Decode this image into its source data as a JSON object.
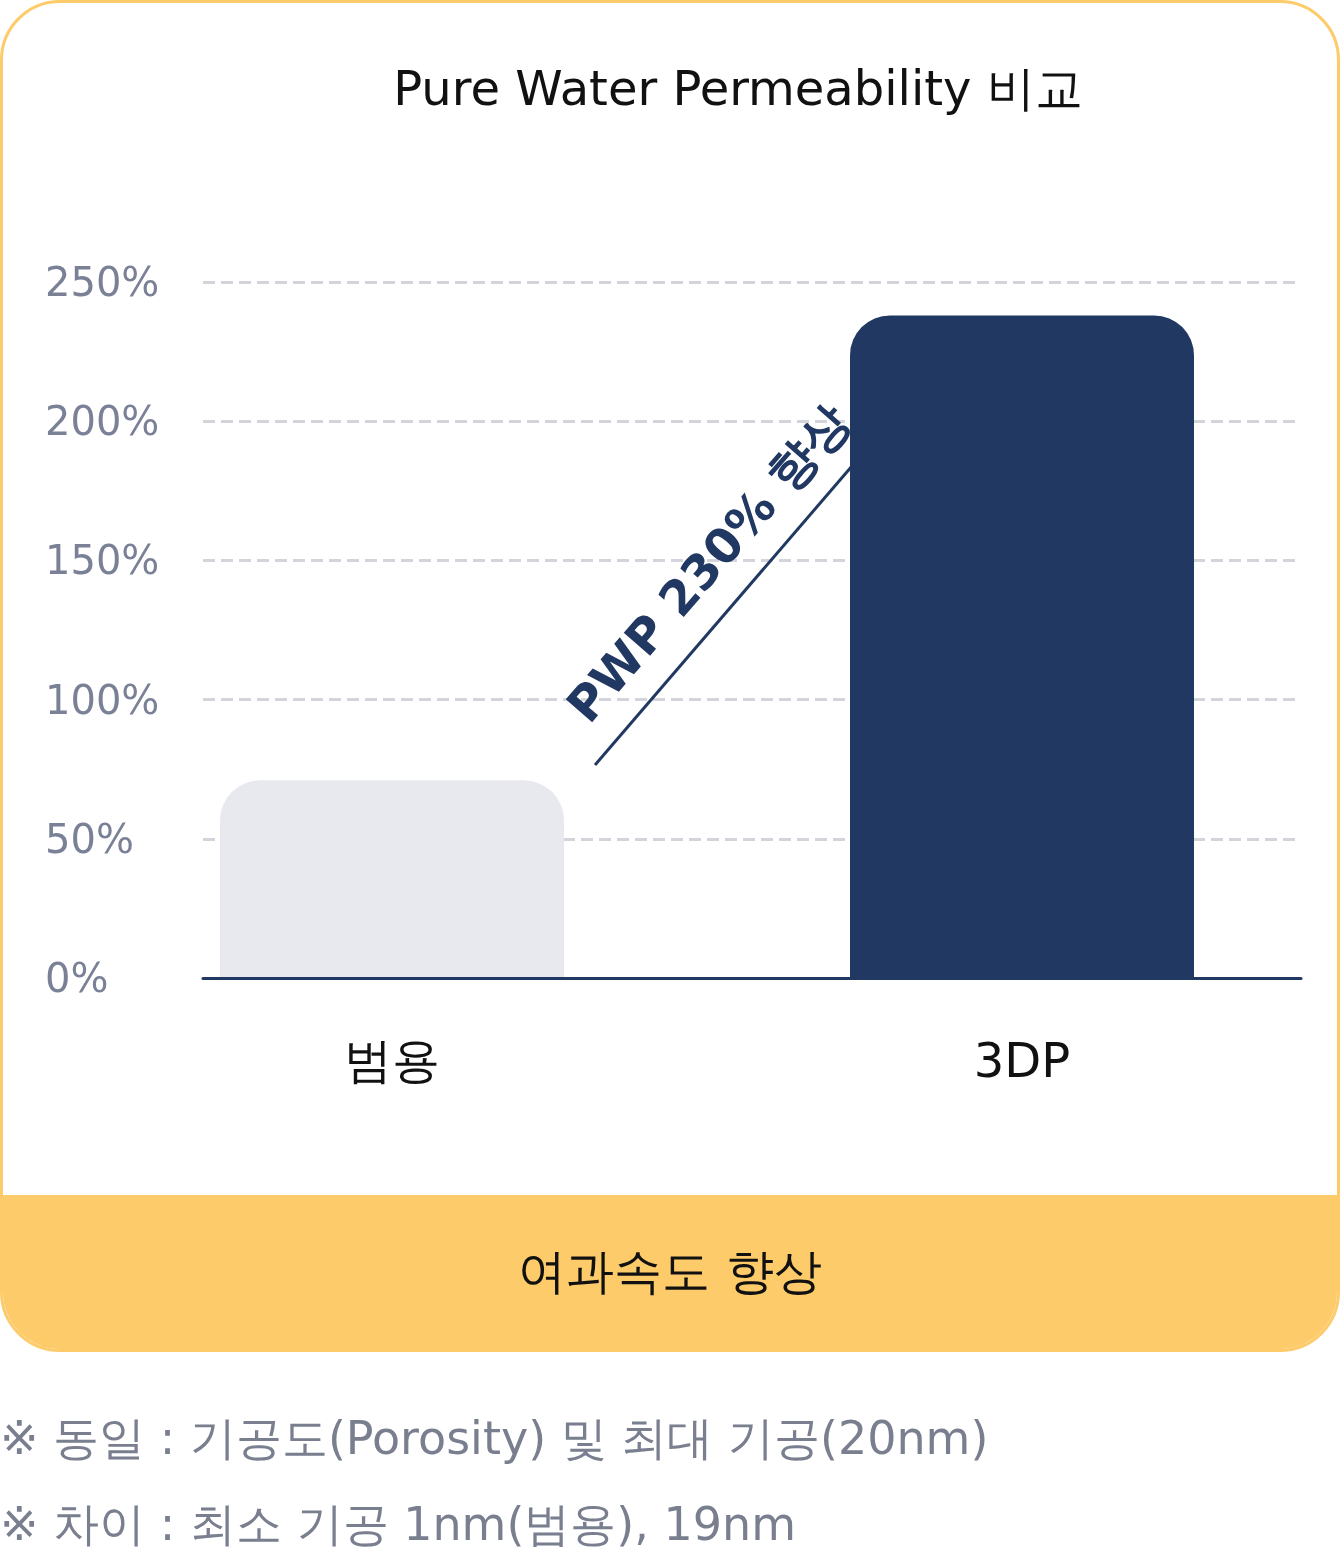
{
  "chart_data": {
    "type": "bar",
    "title": "Pure Water Permeability 비교",
    "categories": [
      "범용",
      "3DP"
    ],
    "values": [
      71,
      238
    ],
    "colors": [
      "#e8e9ee",
      "#213863"
    ],
    "ylim": [
      0,
      250
    ],
    "yticks": [
      {
        "value": 0,
        "label": "0%"
      },
      {
        "value": 50,
        "label": "50%"
      },
      {
        "value": 100,
        "label": "100%"
      },
      {
        "value": 150,
        "label": "150%"
      },
      {
        "value": 200,
        "label": "200%"
      },
      {
        "value": 250,
        "label": "250%"
      }
    ],
    "grid": "y",
    "line_style": "dashed",
    "annotations": [
      "PWP 230% 향상",
      "여과속도 향상",
      "※ 동일 : 기공도(Porosity) 및 최대 기공(20nm)",
      "※ 차이 : 최소 기공 1nm(범용), 19nm"
    ]
  }
}
